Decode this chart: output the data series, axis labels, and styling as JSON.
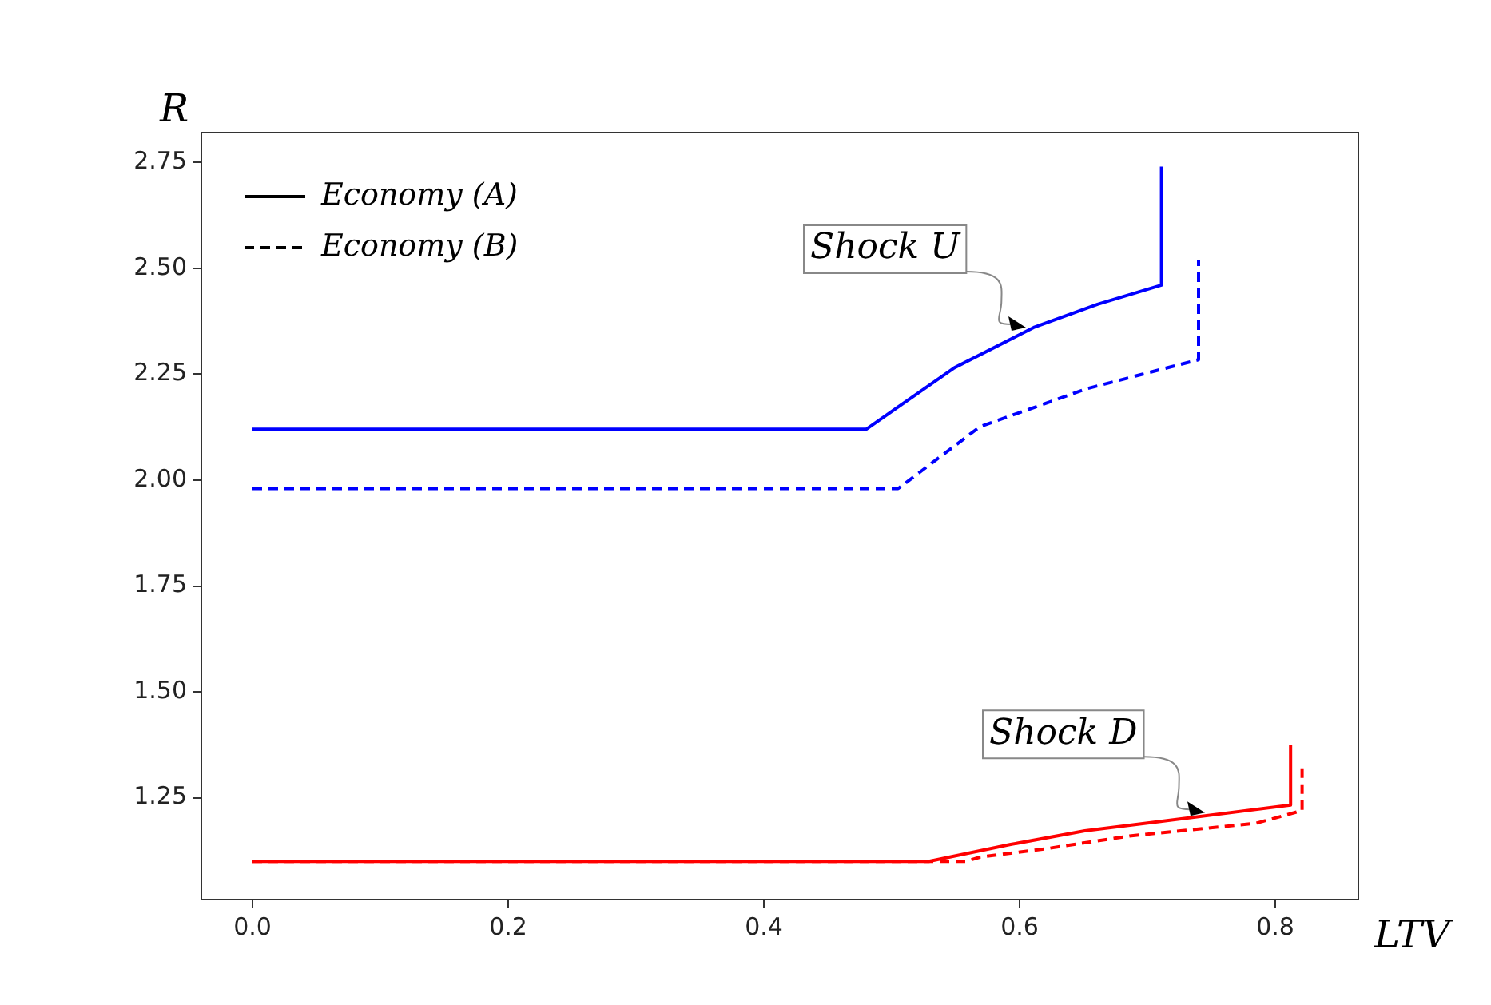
{
  "chart_data": {
    "type": "line",
    "xlabel": "LTV",
    "ylabel": "R",
    "legend": "top left",
    "grid": false,
    "xlim": [
      -0.04,
      0.865
    ],
    "ylim": [
      1.01,
      2.82
    ],
    "xticks": [
      {
        "value": 0,
        "label": "0.0"
      },
      {
        "value": 0.2,
        "label": "0.2"
      },
      {
        "value": 0.4,
        "label": "0.4"
      },
      {
        "value": 0.6,
        "label": "0.6"
      },
      {
        "value": 0.8,
        "label": "0.8"
      }
    ],
    "yticks": [
      {
        "value": 1.25,
        "label": "1.25"
      },
      {
        "value": 1.5,
        "label": "1.50"
      },
      {
        "value": 1.75,
        "label": "1.75"
      },
      {
        "value": 2,
        "label": "2.00"
      },
      {
        "value": 2.25,
        "label": "2.25"
      },
      {
        "value": 2.5,
        "label": "2.50"
      },
      {
        "value": 2.75,
        "label": "2.75"
      }
    ],
    "series": [
      {
        "name": "Economy (A)",
        "color": "#000000",
        "line_style": "solid"
      },
      {
        "name": "Economy (B)",
        "color": "#000000",
        "line_style": "dashed"
      },
      {
        "color": "#0000ff",
        "line_style": "solid",
        "x": [
          0,
          0.48,
          0.549,
          0.611,
          0.661,
          0.711,
          0.711
        ],
        "values": [
          2.12,
          2.12,
          2.265,
          2.36,
          2.415,
          2.46,
          2.74
        ]
      },
      {
        "color": "#0000ff",
        "line_style": "dashed",
        "x": [
          0,
          0.505,
          0.569,
          0.653,
          0.74,
          0.74
        ],
        "values": [
          1.98,
          1.98,
          2.126,
          2.216,
          2.284,
          2.52
        ]
      },
      {
        "color": "#ff0000",
        "line_style": "solid",
        "x": [
          0,
          0.529,
          0.593,
          0.651,
          0.709,
          0.812,
          0.812
        ],
        "values": [
          1.1,
          1.1,
          1.14,
          1.172,
          1.194,
          1.233,
          1.374
        ]
      },
      {
        "color": "#ff0000",
        "line_style": "dashed",
        "x": [
          0,
          0.558,
          0.569,
          0.621,
          0.686,
          0.785,
          0.821,
          0.821
        ],
        "values": [
          1.1,
          1.1,
          1.11,
          1.13,
          1.16,
          1.19,
          1.22,
          1.33
        ]
      }
    ],
    "annotations": [
      {
        "text": "Shock U",
        "x": 0.605,
        "y": 2.36
      },
      {
        "text": "Shock D",
        "x": 0.745,
        "y": 1.215
      }
    ]
  }
}
